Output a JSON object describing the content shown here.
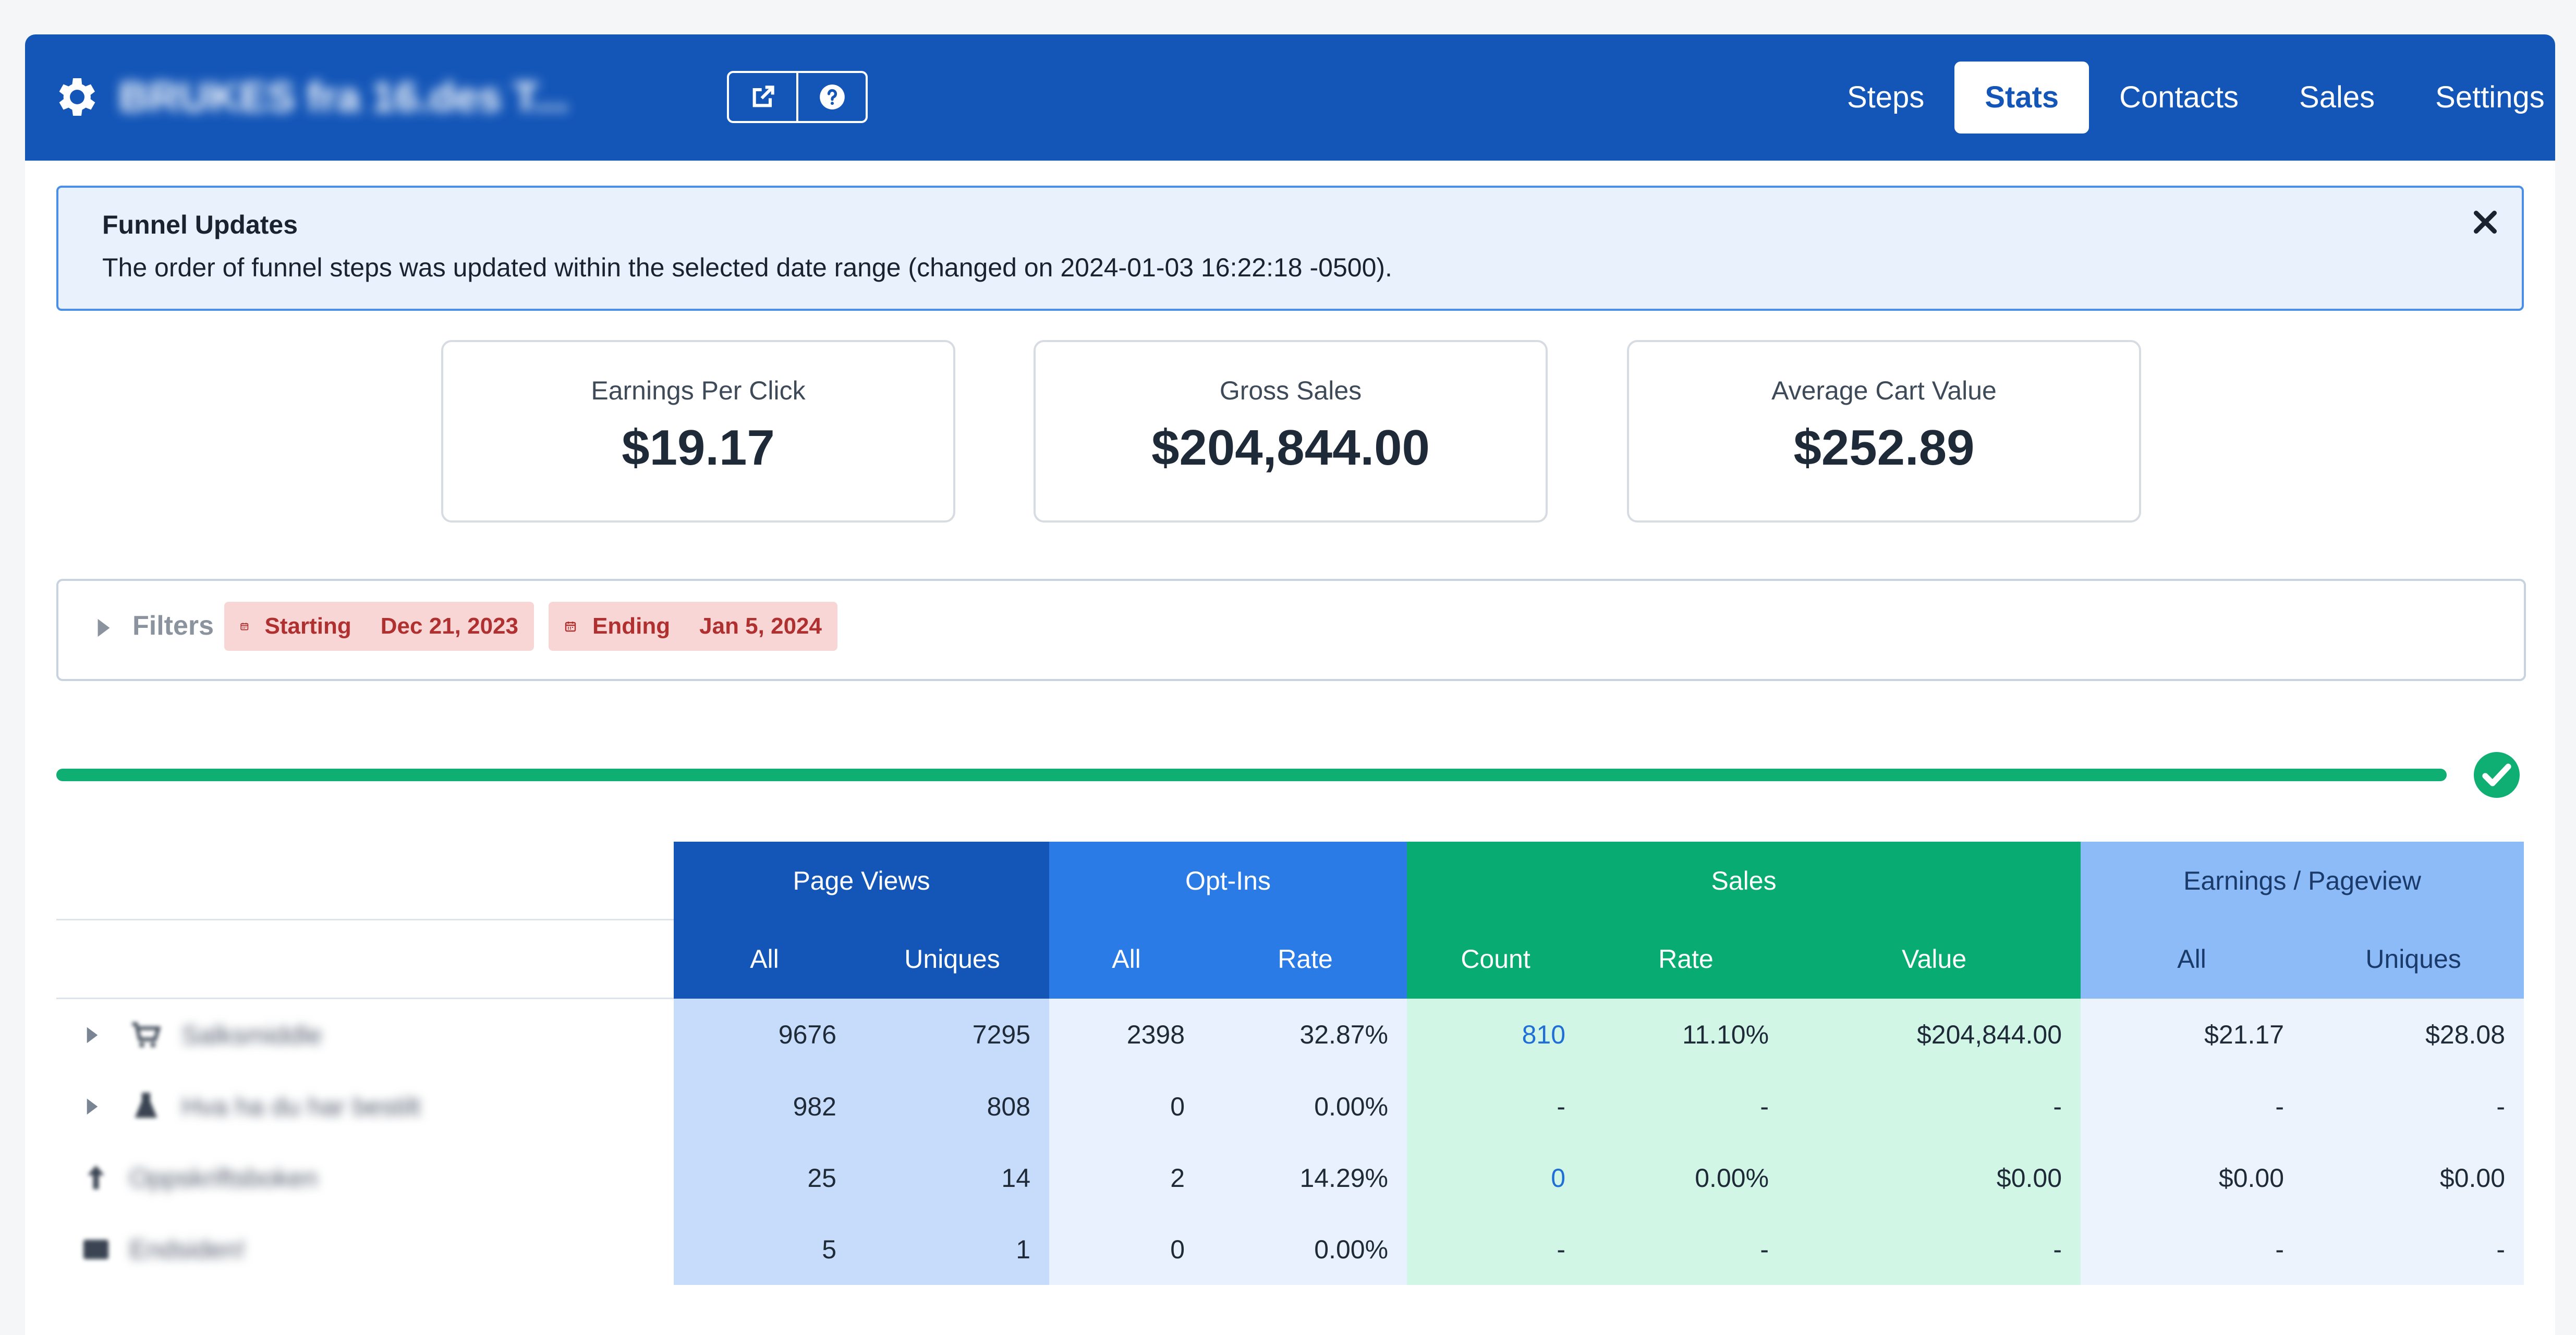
{
  "header": {
    "funnel_name": "BRUKES fra 16.des T...",
    "nav": [
      "Steps",
      "Stats",
      "Contacts",
      "Sales",
      "Settings"
    ],
    "active_nav": "Stats",
    "colors": {
      "primary": "#1456b8"
    }
  },
  "alert": {
    "title": "Funnel Updates",
    "text": "The order of funnel steps was updated within the selected date range (changed on 2024-01-03 16:22:18 -0500)."
  },
  "kpis": [
    {
      "label": "Earnings Per Click",
      "value": "$19.17"
    },
    {
      "label": "Gross Sales",
      "value": "$204,844.00"
    },
    {
      "label": "Average Cart Value",
      "value": "$252.89"
    }
  ],
  "filters": {
    "label": "Filters",
    "starting_label": "Starting",
    "starting_date": "Dec 21, 2023",
    "ending_label": "Ending",
    "ending_date": "Jan 5, 2024"
  },
  "progress": {
    "value": 1.0,
    "status": "complete"
  },
  "table": {
    "groups": [
      "Page Views",
      "Opt-Ins",
      "Sales",
      "Earnings / Pageview"
    ],
    "subheaders": [
      "All",
      "Uniques",
      "All",
      "Rate",
      "Count",
      "Rate",
      "Value",
      "All",
      "Uniques"
    ],
    "rows": [
      {
        "name": "Salksmiddle",
        "pv_all": "9676",
        "pv_uniq": "7295",
        "op_all": "2398",
        "op_rate": "32.87%",
        "sa_count": "810",
        "sa_rate": "11.10%",
        "sa_value": "$204,844.00",
        "ep_all": "$21.17",
        "ep_uniq": "$28.08"
      },
      {
        "name": "Hva ha du har bestilt",
        "pv_all": "982",
        "pv_uniq": "808",
        "op_all": "0",
        "op_rate": "0.00%",
        "sa_count": "-",
        "sa_rate": "-",
        "sa_value": "-",
        "ep_all": "-",
        "ep_uniq": "-"
      },
      {
        "name": "Oppskriftsboken",
        "pv_all": "25",
        "pv_uniq": "14",
        "op_all": "2",
        "op_rate": "14.29%",
        "sa_count": "0",
        "sa_rate": "0.00%",
        "sa_value": "$0.00",
        "ep_all": "$0.00",
        "ep_uniq": "$0.00"
      },
      {
        "name": "Endsiden!",
        "pv_all": "5",
        "pv_uniq": "1",
        "op_all": "0",
        "op_rate": "0.00%",
        "sa_count": "-",
        "sa_rate": "-",
        "sa_value": "-",
        "ep_all": "-",
        "ep_uniq": "-"
      }
    ]
  }
}
